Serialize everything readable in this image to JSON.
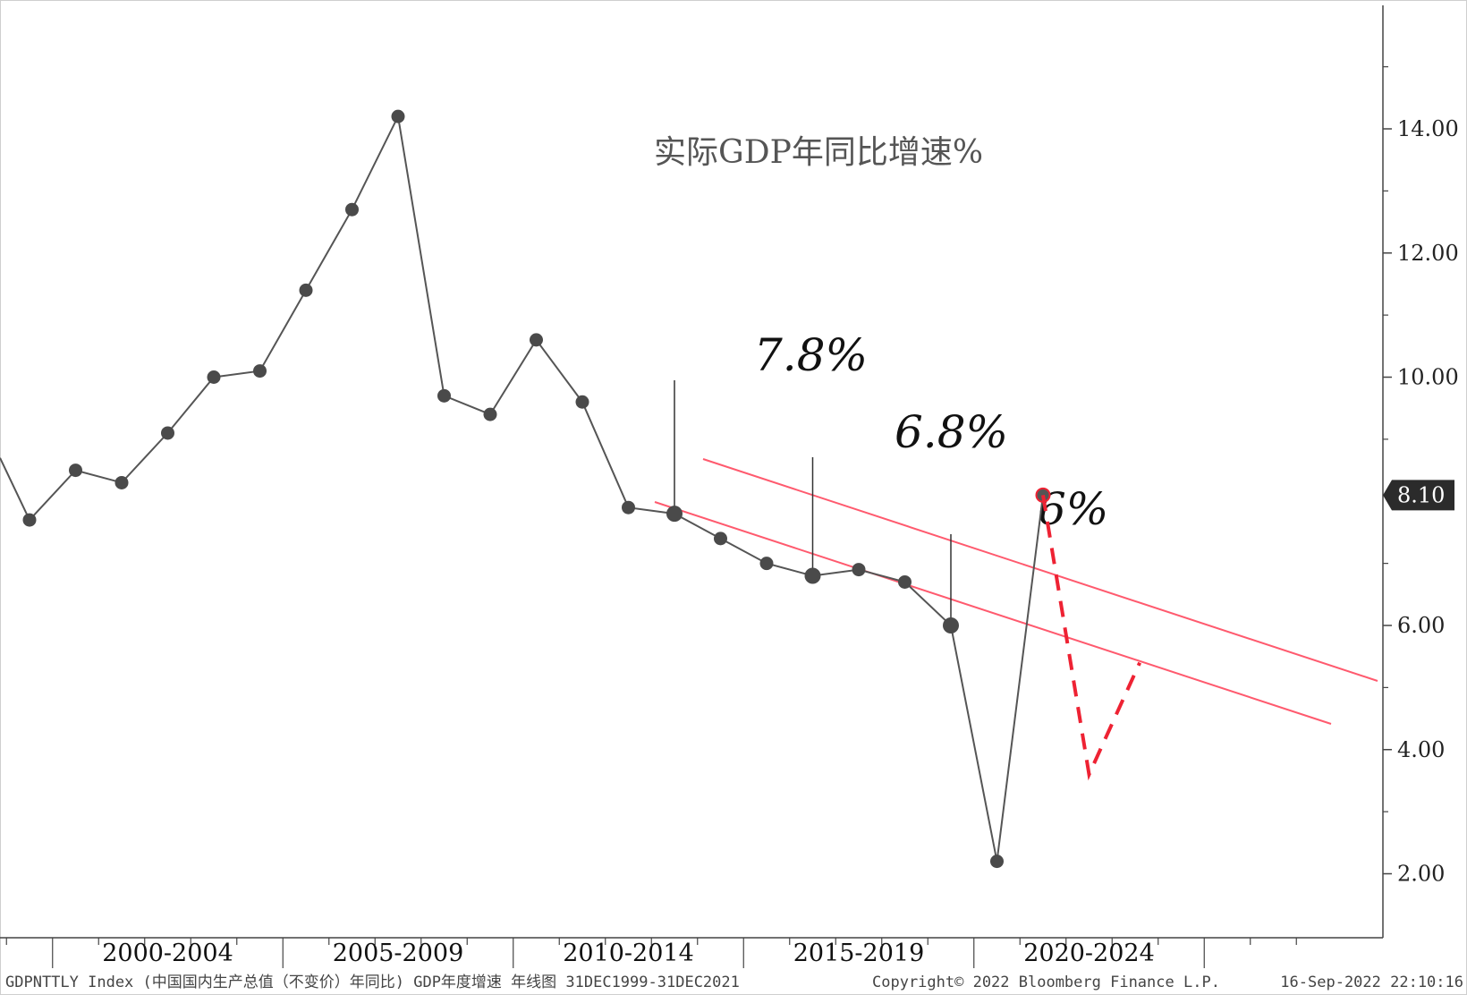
{
  "chart_data": {
    "type": "line",
    "title": "实际GDP年同比增速%",
    "yaxis": {
      "min": 1,
      "max": 15,
      "ticks": [
        "14.00",
        "12.00",
        "10.00",
        "6.00",
        "4.00",
        "2.00"
      ],
      "position": "right"
    },
    "xaxis": {
      "categories": [
        "2000-2004",
        "2005-2009",
        "2010-2014",
        "2015-2019",
        "2020-2024"
      ]
    },
    "series": [
      {
        "color": "#555555",
        "points": [
          {
            "x": 1999,
            "y": 7.7
          },
          {
            "x": 2000,
            "y": 8.5
          },
          {
            "x": 2001,
            "y": 8.3
          },
          {
            "x": 2002,
            "y": 9.1
          },
          {
            "x": 2003,
            "y": 10.0
          },
          {
            "x": 2004,
            "y": 10.1
          },
          {
            "x": 2005,
            "y": 11.4
          },
          {
            "x": 2006,
            "y": 12.7
          },
          {
            "x": 2007,
            "y": 14.2
          },
          {
            "x": 2008,
            "y": 9.7
          },
          {
            "x": 2009,
            "y": 9.4
          },
          {
            "x": 2010,
            "y": 10.6
          },
          {
            "x": 2011,
            "y": 9.6
          },
          {
            "x": 2012,
            "y": 7.9
          },
          {
            "x": 2013,
            "y": 7.8
          },
          {
            "x": 2014,
            "y": 7.4
          },
          {
            "x": 2015,
            "y": 7.0
          },
          {
            "x": 2016,
            "y": 6.8
          },
          {
            "x": 2017,
            "y": 6.9
          },
          {
            "x": 2018,
            "y": 6.7
          },
          {
            "x": 2019,
            "y": 6.0
          },
          {
            "x": 2020,
            "y": 2.2
          },
          {
            "x": 2021,
            "y": 8.1
          }
        ]
      }
    ],
    "last_value_badge": "8.10",
    "annotations": [
      "7.8%",
      "6.8%",
      "6%"
    ],
    "channel_color": "#ff5a6e",
    "projection_color": "#ee2233",
    "footer_left": "GDPNTTLY Index (中国国内生产总值（不变价）年同比) GDP年度增速  年线图 31DEC1999-31DEC2021",
    "footer_mid": "Copyright© 2022 Bloomberg Finance L.P.",
    "footer_right": "16-Sep-2022 22:10:16"
  }
}
